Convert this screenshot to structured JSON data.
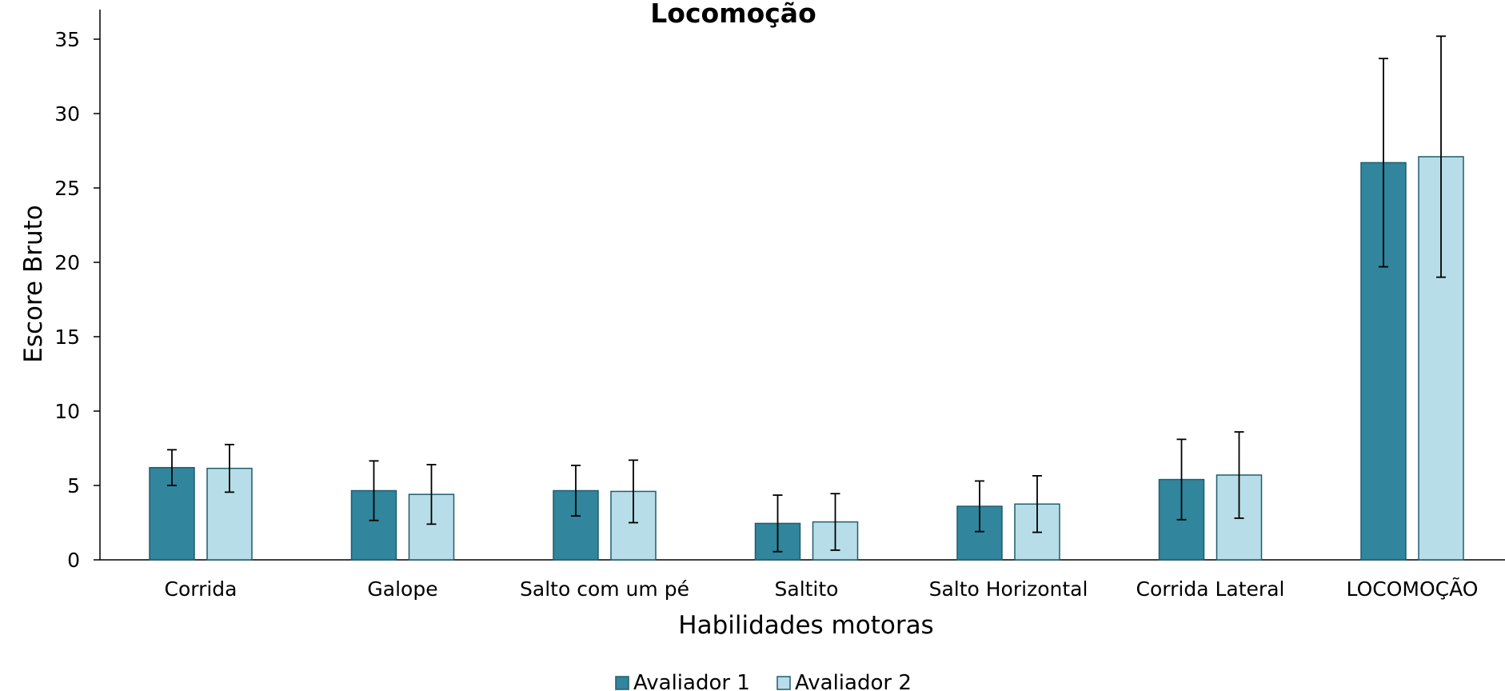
{
  "chart_data": {
    "type": "bar",
    "title": "Locomoção",
    "xlabel": "Habilidades motoras",
    "ylabel": "Escore Bruto",
    "ylim": [
      0,
      35
    ],
    "yticks": [
      0,
      5,
      10,
      15,
      20,
      25,
      30,
      35
    ],
    "grid": false,
    "legend_position": "bottom",
    "categories": [
      "Corrida",
      "Galope",
      "Salto com um pé",
      "Saltito",
      "Salto Horizontal",
      "Corrida Lateral",
      "LOCOMOÇÃO"
    ],
    "series": [
      {
        "name": "Avaliador 1",
        "color": "#31859C",
        "values": [
          6.2,
          4.65,
          4.65,
          2.45,
          3.6,
          5.4,
          26.7
        ],
        "error": [
          1.2,
          2.0,
          1.7,
          1.9,
          1.7,
          2.7,
          7.0
        ]
      },
      {
        "name": "Avaliador 2",
        "color": "#B7DDE8",
        "values": [
          6.15,
          4.4,
          4.6,
          2.55,
          3.75,
          5.7,
          27.1
        ],
        "error": [
          1.6,
          2.0,
          2.1,
          1.9,
          1.9,
          2.9,
          8.1
        ]
      }
    ]
  }
}
